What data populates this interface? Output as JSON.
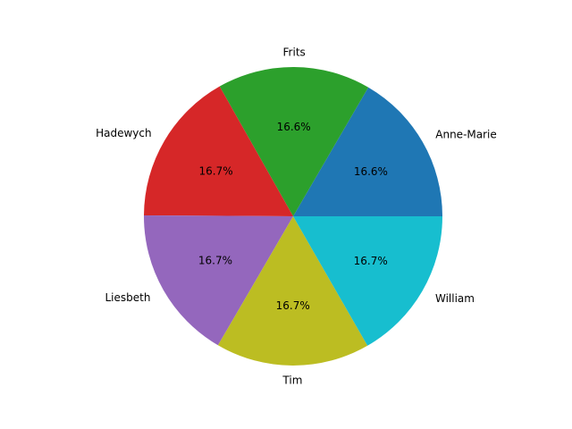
{
  "chart_data": {
    "type": "pie",
    "labels": [
      "Anne-Marie",
      "Frits",
      "Hadewych",
      "Liesbeth",
      "Tim",
      "William"
    ],
    "values": [
      16.6,
      16.6,
      16.7,
      16.7,
      16.7,
      16.7
    ],
    "percent_labels": [
      "16.6%",
      "16.6%",
      "16.7%",
      "16.7%",
      "16.7%",
      "16.7%"
    ],
    "colors": [
      "#1f77b4",
      "#2ca02c",
      "#d62728",
      "#9467bd",
      "#bcbd22",
      "#17becf"
    ],
    "start_angle_deg": 0,
    "direction": "counterclockwise"
  }
}
